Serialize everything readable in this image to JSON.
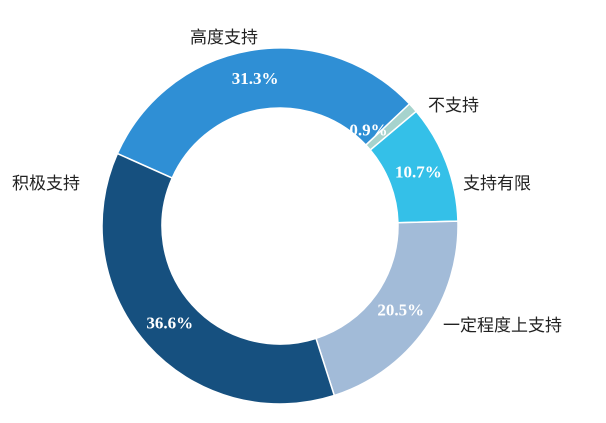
{
  "chart_data": {
    "type": "donut",
    "categories": [
      "高度支持",
      "不支持",
      "支持有限",
      "一定程度上支持",
      "积极支持"
    ],
    "values": [
      31.3,
      0.9,
      10.7,
      20.5,
      36.6
    ],
    "value_labels": [
      "31.3%",
      "0.9%",
      "10.7%",
      "20.5%",
      "36.6%"
    ],
    "colors": [
      "#2f8fd5",
      "#a6d3cd",
      "#34c0e8",
      "#a2bbd8",
      "#16507f"
    ]
  }
}
